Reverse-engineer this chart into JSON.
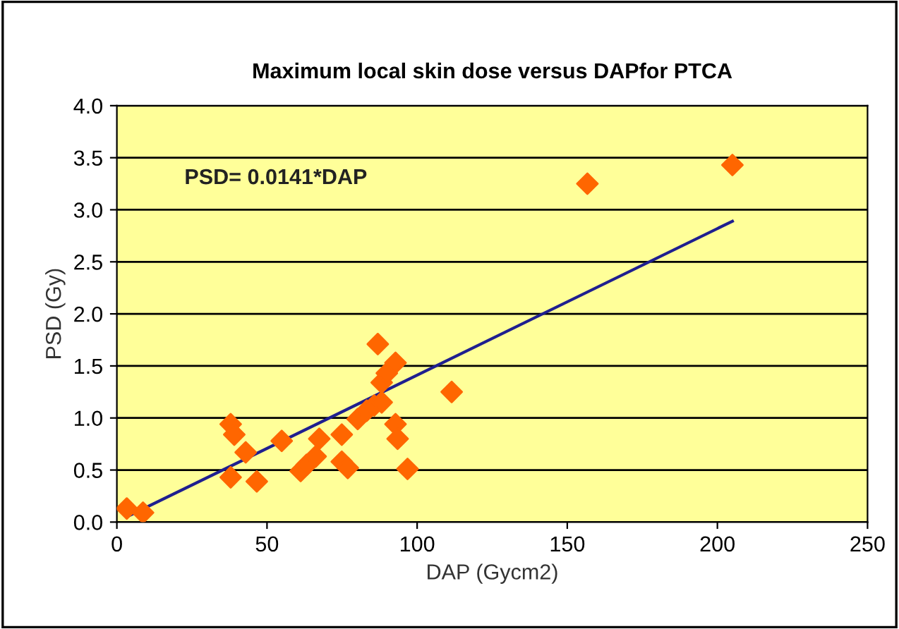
{
  "chart_data": {
    "type": "scatter",
    "title": "Maximum local skin dose versus DAPfor PTCA",
    "xlabel": "DAP (Gycm2)",
    "ylabel": "PSD (Gy)",
    "annotations": [
      "PSD= 0.0141*DAP"
    ],
    "series": [
      {
        "color": "#ff6600",
        "marker": "diamond",
        "x": [
          3.3,
          8.7,
          37.9,
          39.1,
          37.9,
          42.9,
          46.6,
          54.9,
          61.2,
          63.2,
          66.2,
          67.4,
          74.9,
          74.9,
          76.9,
          80.2,
          83.2,
          85.7,
          88.2,
          86.9,
          88.2,
          89.9,
          92.8,
          92.8,
          93.5,
          96.8,
          111.5,
          156.7,
          205.0
        ],
        "values": [
          0.13,
          0.09,
          0.94,
          0.84,
          0.43,
          0.67,
          0.39,
          0.78,
          0.49,
          0.55,
          0.63,
          0.8,
          0.84,
          0.58,
          0.52,
          0.99,
          1.07,
          1.12,
          1.15,
          1.71,
          1.34,
          1.43,
          1.53,
          0.94,
          0.8,
          0.51,
          1.25,
          3.25,
          3.43
        ]
      },
      {
        "type": "line",
        "color": "#1f1f8f",
        "marker": "none",
        "line_style": "solid",
        "x": [
          3.3,
          205.0
        ],
        "values": [
          0.05,
          2.89
        ]
      }
    ],
    "xlim": [
      0,
      250
    ],
    "xticks": [
      0,
      50,
      100,
      150,
      200,
      250
    ],
    "ylim": [
      0,
      4
    ],
    "yticks": [
      {
        "value": 0,
        "label": "0.0"
      },
      {
        "value": 0.5,
        "label": "0.5"
      },
      {
        "value": 1,
        "label": "1.0"
      },
      {
        "value": 1.5,
        "label": "1.5"
      },
      {
        "value": 2,
        "label": "2.0"
      },
      {
        "value": 2.5,
        "label": "2.5"
      },
      {
        "value": 3,
        "label": "3.0"
      },
      {
        "value": 3.5,
        "label": "3.5"
      },
      {
        "value": 4,
        "label": "4.0"
      }
    ],
    "grid": "y",
    "legend": false
  }
}
